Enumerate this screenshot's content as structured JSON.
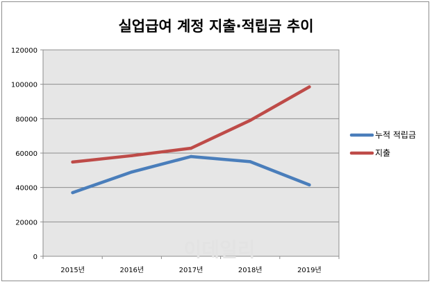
{
  "chart_data": {
    "type": "line",
    "title": "실업급여 계정 지출·적립금 추이",
    "categories": [
      "2015년",
      "2016년",
      "2017년",
      "2018년",
      "2019년"
    ],
    "series": [
      {
        "name": "누적 적립금",
        "color": "#4a7ebb",
        "values": [
          37000,
          49000,
          58000,
          55000,
          41500
        ]
      },
      {
        "name": "지출",
        "color": "#be4b48",
        "values": [
          54800,
          58500,
          62800,
          79000,
          98500
        ]
      }
    ],
    "ylim": [
      0,
      120000
    ],
    "yticks": [
      0,
      20000,
      40000,
      60000,
      80000,
      100000,
      120000
    ],
    "ytick_labels": [
      "0",
      "20000",
      "40000",
      "60000",
      "80000",
      "100000",
      "120000"
    ],
    "grid": true,
    "plot_background": "#e6e6e6",
    "legend_position": "right",
    "xlabel": "",
    "ylabel": "",
    "watermark": "이데일리"
  }
}
